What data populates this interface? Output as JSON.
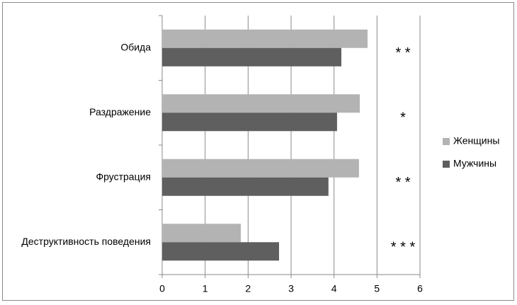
{
  "chart_data": {
    "type": "bar",
    "orientation": "horizontal",
    "categories": [
      "Обида",
      "Раздражение",
      "Фрустрация",
      "Деструктивность поведения"
    ],
    "series": [
      {
        "name": "Женщины",
        "color": "#b3b3b3",
        "values": [
          4.78,
          4.6,
          4.58,
          1.83
        ]
      },
      {
        "name": "Мужчины",
        "color": "#5f5f5f",
        "values": [
          4.17,
          4.07,
          3.87,
          2.72
        ]
      }
    ],
    "annotations": [
      "* *",
      "*",
      "* *",
      "* * *"
    ],
    "xlim": [
      0,
      6
    ],
    "xticks": [
      0,
      1,
      2,
      3,
      4,
      5,
      6
    ],
    "grid": true,
    "legend": "right"
  }
}
